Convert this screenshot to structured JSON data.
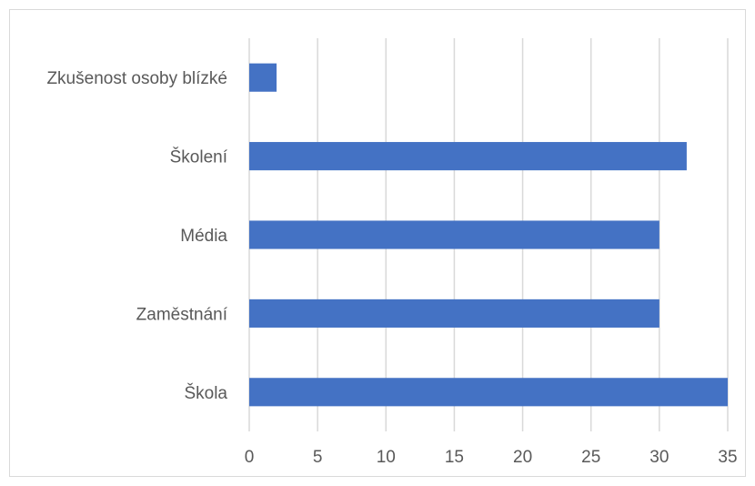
{
  "chart_data": {
    "type": "bar",
    "orientation": "horizontal",
    "categories": [
      "Zkušenost osoby blízké",
      "Školení",
      "Média",
      "Zaměstnání",
      "Škola"
    ],
    "values": [
      2,
      32,
      30,
      30,
      35
    ],
    "xlim": [
      0,
      35
    ],
    "x_ticks": [
      "0",
      "5",
      "10",
      "15",
      "20",
      "25",
      "30",
      "35"
    ],
    "title": "",
    "xlabel": "",
    "ylabel": "",
    "grid": "vertical",
    "legend": "none",
    "bar_color": "#4472c4",
    "grid_color": "#d9d9d9",
    "text_color": "#595959"
  }
}
